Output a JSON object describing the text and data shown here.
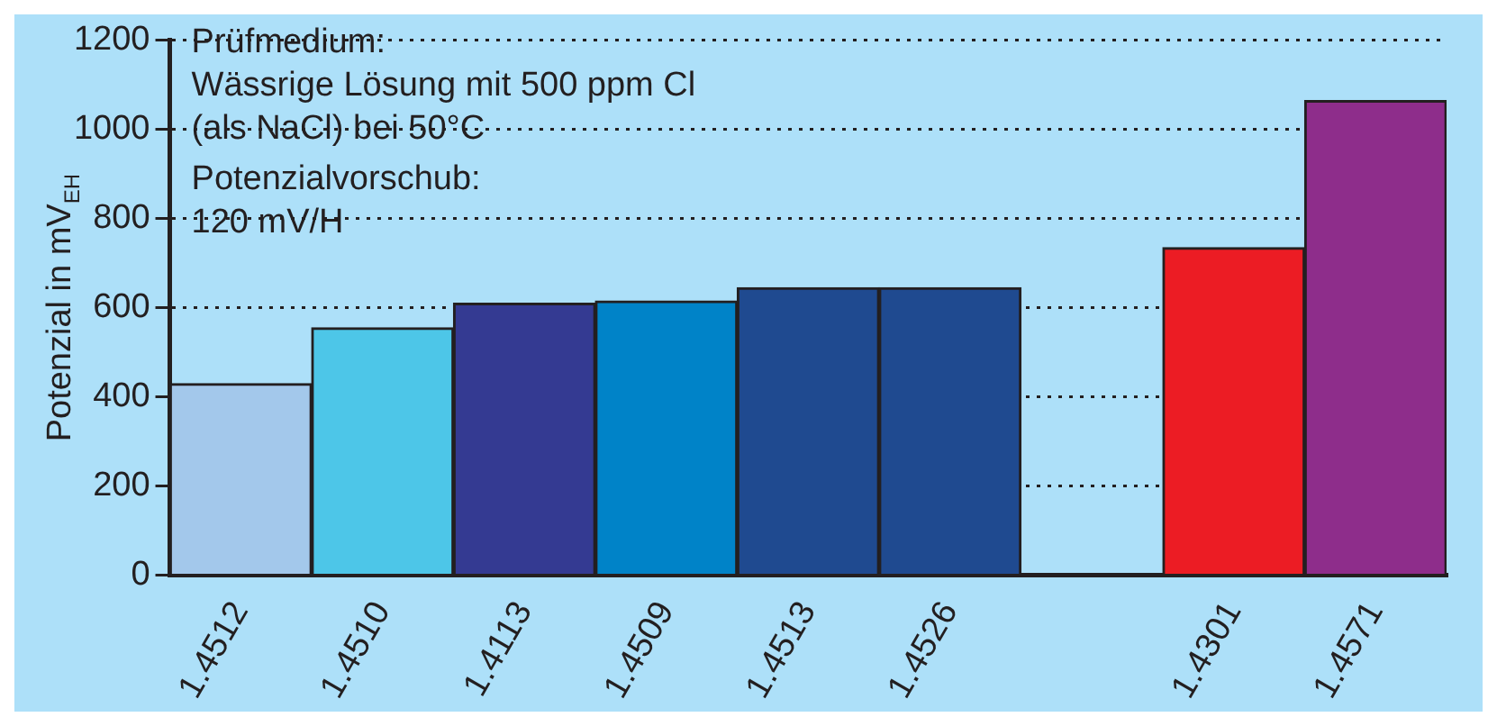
{
  "chart_data": {
    "type": "bar",
    "ylabel": "Potenzial in mV$_{EH}$",
    "categories": [
      "1.4512",
      "1.4510",
      "1.4113",
      "1.4509",
      "1.4513",
      "1.4526",
      null,
      "1.4301",
      "1.4571"
    ],
    "values": [
      430,
      555,
      610,
      615,
      645,
      645,
      null,
      735,
      1065
    ],
    "colors": [
      "#a3c8eb",
      "#4dc6e8",
      "#343a92",
      "#0083c8",
      "#1f4a90",
      "#1f4a90",
      "#ade0f9",
      "#ec1c24",
      "#8e2d8b"
    ],
    "ylim": [
      0,
      1200
    ],
    "yticks": [
      0,
      200,
      400,
      600,
      800,
      1000,
      1200
    ],
    "grid": "y",
    "legend": false,
    "annotations": [
      "Prüfmedium:\nWässrige Lösung mit 500 ppm Cl\n(als NaCl) bei 50°C",
      "Potenzialvorschub:\n120 mV/H"
    ]
  }
}
